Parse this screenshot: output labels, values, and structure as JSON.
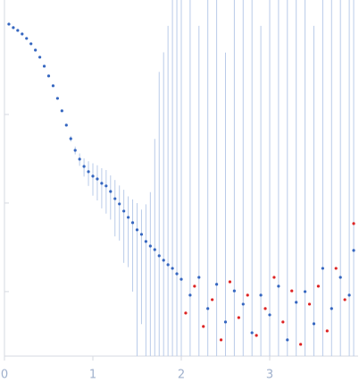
{
  "chart_data": {
    "type": "scatter",
    "log_y": true,
    "xlim": [
      0,
      3.99
    ],
    "ylim": [
      0.000187,
      1.96
    ],
    "xticks": [
      0,
      1,
      2,
      3
    ],
    "yticks": [
      0.001,
      0.01,
      0.1
    ],
    "error_color": "#b9cbe9",
    "series": [
      {
        "color": "#3566c0",
        "x": [
          0.05,
          0.1,
          0.15,
          0.2,
          0.25,
          0.3,
          0.35,
          0.4,
          0.45,
          0.5,
          0.55,
          0.6,
          0.65,
          0.7,
          0.75,
          0.8,
          0.85,
          0.9,
          0.95,
          1.0,
          1.05,
          1.1,
          1.15,
          1.2,
          1.25,
          1.3,
          1.35,
          1.4,
          1.45,
          1.5,
          1.55,
          1.6,
          1.65,
          1.7,
          1.75,
          1.8,
          1.85,
          1.9,
          1.95,
          2.0,
          2.1,
          2.2,
          2.3,
          2.4,
          2.5,
          2.6,
          2.7,
          2.8,
          2.9,
          3.0,
          3.1,
          3.2,
          3.3,
          3.4,
          3.5,
          3.6,
          3.7,
          3.8,
          3.9,
          3.95
        ],
        "values": [
          1.047,
          0.955,
          0.89,
          0.811,
          0.722,
          0.628,
          0.533,
          0.443,
          0.351,
          0.272,
          0.211,
          0.152,
          0.11,
          0.0757,
          0.0533,
          0.0394,
          0.0313,
          0.0259,
          0.0226,
          0.0201,
          0.0187,
          0.0167,
          0.0156,
          0.0135,
          0.0112,
          0.00977,
          0.00811,
          0.00689,
          0.006,
          0.00498,
          0.00443,
          0.00368,
          0.00327,
          0.00298,
          0.00254,
          0.00226,
          0.00201,
          0.00183,
          0.00159,
          0.00138,
          0.000912,
          0.00145,
          0.000643,
          0.00121,
          0.000454,
          0.00102,
          0.000722,
          0.000343,
          0.000912,
          0.000546,
          0.00115,
          0.000285,
          0.000757,
          0.001,
          0.000433,
          0.00183,
          0.000643,
          0.00145,
          0.000912,
          0.00292
        ],
        "errors": [
          0.01,
          0.01,
          0.009,
          0.008,
          0.007,
          0.006,
          0.005,
          0.004,
          0.004,
          0.003,
          0.003,
          0.002,
          0.002,
          0.002,
          0.004,
          0.004,
          0.005,
          0.006,
          0.007,
          0.008,
          0.008,
          0.008,
          0.008,
          0.007,
          0.007,
          0.006,
          0.006,
          0.005,
          0.005,
          0.005,
          0.004,
          0.006,
          0.01,
          0.05,
          0.3,
          0.5,
          1,
          2,
          2,
          2,
          2,
          1,
          2,
          2,
          0.5,
          2,
          2,
          2,
          1,
          2,
          2,
          2,
          2,
          2,
          1,
          2,
          2,
          2,
          2,
          2
        ]
      },
      {
        "color": "#dd2424",
        "x": [
          2.05,
          2.15,
          2.25,
          2.35,
          2.45,
          2.55,
          2.65,
          2.75,
          2.85,
          2.95,
          3.05,
          3.15,
          3.25,
          3.35,
          3.45,
          3.55,
          3.65,
          3.75,
          3.85,
          3.95
        ],
        "values": [
          0.000573,
          0.00115,
          0.000404,
          0.000811,
          0.000285,
          0.00129,
          0.000509,
          0.000912,
          0.00032,
          0.000643,
          0.00145,
          0.000454,
          0.00102,
          0.000254,
          0.000722,
          0.00115,
          0.00036,
          0.00183,
          0.000811,
          0.00586
        ]
      }
    ]
  }
}
